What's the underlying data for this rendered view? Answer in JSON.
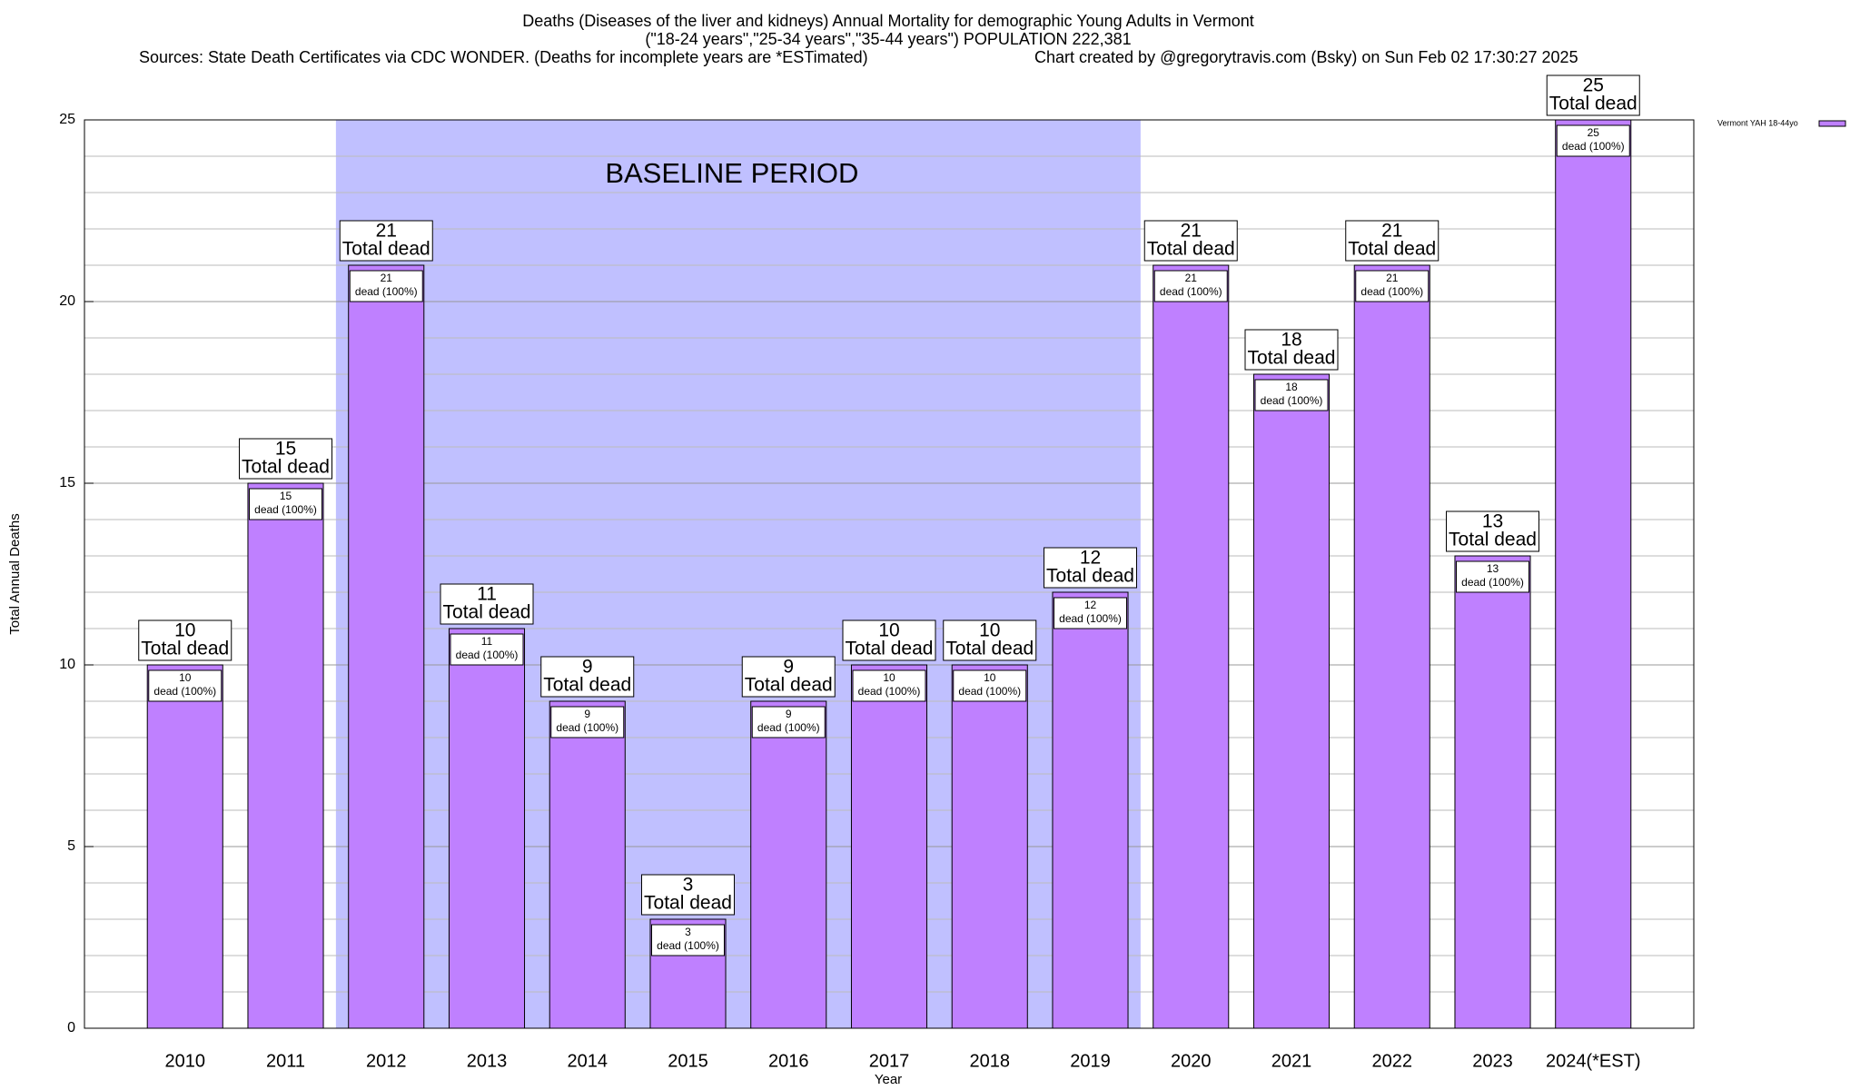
{
  "chart_data": {
    "type": "bar",
    "title_lines": [
      "Deaths (Diseases of the liver and kidneys) Annual Mortality for demographic Young Adults in Vermont",
      "(\"18-24 years\",\"25-34 years\",\"35-44 years\") POPULATION 222,381"
    ],
    "source": "Sources: State Death Certificates via CDC WONDER. (Deaths for incomplete years are *ESTimated)",
    "credit": "Chart created by @gregorytravis.com (Bsky) on Sun Feb 02 17:30:27 2025",
    "x_label": "Year",
    "y_label": "Total Annual Deaths",
    "categories": [
      "2010",
      "2011",
      "2012",
      "2013",
      "2014",
      "2015",
      "2016",
      "2017",
      "2018",
      "2019",
      "2020",
      "2021",
      "2022",
      "2023",
      "2024(*EST)"
    ],
    "series": [
      {
        "name": "Vermont YAH 18-44yo",
        "color": "#bf80ff",
        "values": [
          10,
          15,
          21,
          11,
          9,
          3,
          9,
          10,
          10,
          12,
          21,
          18,
          21,
          13,
          25
        ]
      }
    ],
    "total_label": "Total dead",
    "segment_label": "dead (100%)",
    "shaded_period": {
      "label": "BASELINE PERIOD",
      "from": "2012",
      "to": "2019",
      "color": "#c0c0ff"
    },
    "ylim": [
      0,
      25
    ],
    "yticks": [
      0,
      5,
      10,
      15,
      20,
      25
    ],
    "minor_yticks": [
      1,
      2,
      3,
      4,
      6,
      7,
      8,
      9,
      11,
      12,
      13,
      14,
      16,
      17,
      18,
      19,
      21,
      22,
      23,
      24
    ],
    "grid": true,
    "legend": "top-right"
  }
}
